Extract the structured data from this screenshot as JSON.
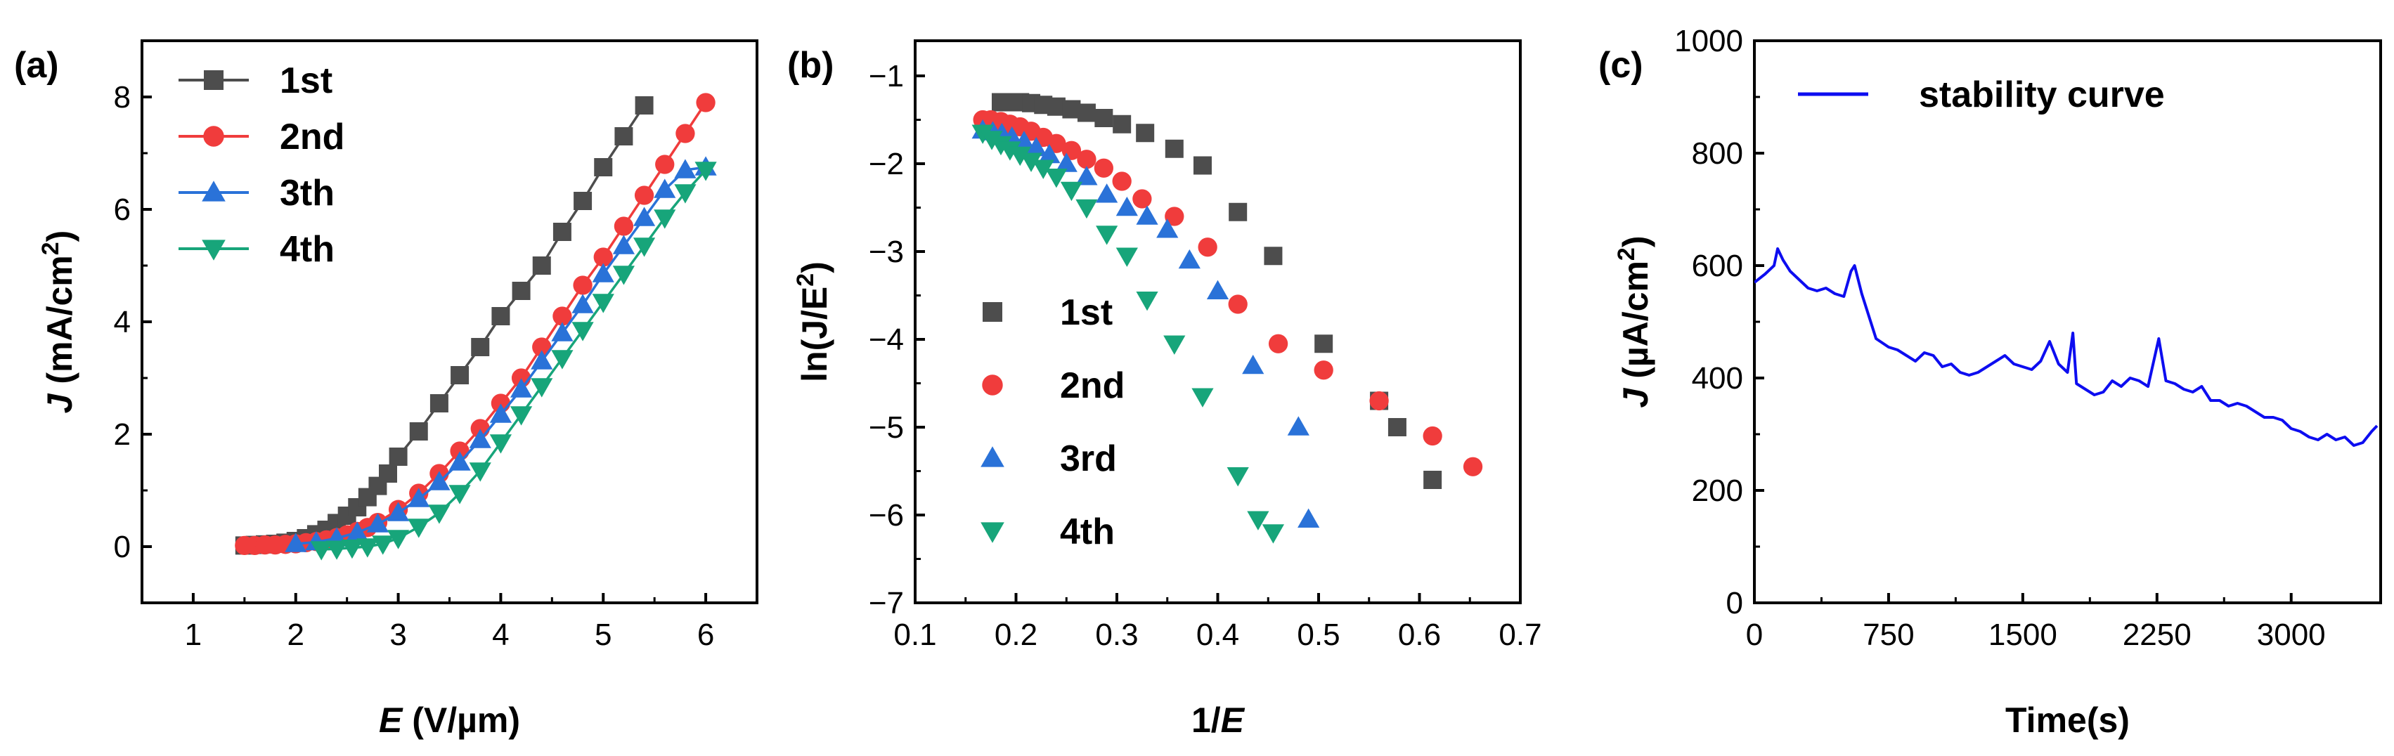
{
  "chart_data": [
    {
      "panel_label": "(a)",
      "type": "line",
      "xlabel_italic": "E",
      "xlabel_rest": " (V/µm)",
      "ylabel_italic": "J",
      "ylabel_rest": " (mA/cm",
      "ylabel_sup": "2",
      "ylabel_close": ")",
      "xlim": [
        0.5,
        6.5
      ],
      "ylim": [
        -1,
        9
      ],
      "xticks": [
        1,
        2,
        3,
        4,
        5,
        6
      ],
      "yticks": [
        0,
        2,
        4,
        6,
        8
      ],
      "legend_position": "top-left",
      "series": [
        {
          "name": "1st",
          "color": "#4d4d4d",
          "marker": "square",
          "x": [
            1.5,
            1.6,
            1.7,
            1.8,
            1.9,
            2.0,
            2.1,
            2.2,
            2.3,
            2.4,
            2.5,
            2.6,
            2.7,
            2.8,
            2.9,
            3.0,
            3.2,
            3.4,
            3.6,
            3.8,
            4.0,
            4.2,
            4.4,
            4.6,
            4.8,
            5.0,
            5.2,
            5.4
          ],
          "y": [
            0.02,
            0.03,
            0.04,
            0.05,
            0.07,
            0.1,
            0.15,
            0.22,
            0.3,
            0.42,
            0.55,
            0.7,
            0.88,
            1.08,
            1.3,
            1.6,
            2.05,
            2.55,
            3.05,
            3.55,
            4.1,
            4.55,
            5.0,
            5.6,
            6.15,
            6.75,
            7.3,
            7.85
          ]
        },
        {
          "name": "2nd",
          "color": "#f03c3c",
          "marker": "circle",
          "x": [
            1.5,
            1.6,
            1.7,
            1.8,
            1.9,
            2.0,
            2.1,
            2.2,
            2.3,
            2.4,
            2.5,
            2.6,
            2.7,
            2.8,
            3.0,
            3.2,
            3.4,
            3.6,
            3.8,
            4.0,
            4.2,
            4.4,
            4.6,
            4.8,
            5.0,
            5.2,
            5.4,
            5.6,
            5.8,
            6.0
          ],
          "y": [
            0.02,
            0.02,
            0.03,
            0.03,
            0.04,
            0.05,
            0.07,
            0.09,
            0.12,
            0.16,
            0.21,
            0.27,
            0.34,
            0.43,
            0.66,
            0.95,
            1.3,
            1.7,
            2.1,
            2.55,
            3.0,
            3.55,
            4.1,
            4.65,
            5.15,
            5.7,
            6.25,
            6.8,
            7.35,
            7.9
          ]
        },
        {
          "name": "3th",
          "color": "#2a72d8",
          "marker": "triangle-up",
          "x": [
            2.0,
            2.2,
            2.4,
            2.6,
            2.8,
            3.0,
            3.2,
            3.4,
            3.6,
            3.8,
            4.0,
            4.2,
            4.4,
            4.6,
            4.8,
            5.0,
            5.2,
            5.4,
            5.6,
            5.8,
            6.0
          ],
          "y": [
            0.05,
            0.08,
            0.15,
            0.25,
            0.4,
            0.6,
            0.85,
            1.15,
            1.5,
            1.9,
            2.35,
            2.8,
            3.3,
            3.8,
            4.3,
            4.85,
            5.35,
            5.85,
            6.35,
            6.7,
            6.75
          ]
        },
        {
          "name": "4th",
          "color": "#17a57a",
          "marker": "triangle-down",
          "x": [
            2.25,
            2.4,
            2.55,
            2.7,
            2.85,
            3.0,
            3.2,
            3.4,
            3.6,
            3.8,
            4.0,
            4.2,
            4.4,
            4.6,
            4.8,
            5.0,
            5.2,
            5.4,
            5.6,
            5.8,
            6.0
          ],
          "y": [
            -0.05,
            -0.04,
            -0.02,
            0.0,
            0.05,
            0.15,
            0.35,
            0.6,
            0.95,
            1.35,
            1.85,
            2.35,
            2.85,
            3.35,
            3.85,
            4.35,
            4.85,
            5.35,
            5.85,
            6.3,
            6.7
          ]
        }
      ]
    },
    {
      "panel_label": "(b)",
      "type": "scatter",
      "xlabel_prefix": "1/",
      "xlabel_italic": "E",
      "ylabel_prefix": "ln(J/E",
      "ylabel_sup": "2",
      "ylabel_close": ")",
      "xlim": [
        0.1,
        0.7
      ],
      "ylim": [
        -7,
        -0.6
      ],
      "xticks": [
        0.1,
        0.2,
        0.3,
        0.4,
        0.5,
        0.6,
        0.7
      ],
      "xtick_labels": [
        "0.1",
        "0.2",
        "0.3",
        "0.4",
        "0.5",
        "0.6",
        "0.7"
      ],
      "yticks": [
        -7,
        -6,
        -5,
        -4,
        -3,
        -2,
        -1
      ],
      "ytick_labels": [
        "−7",
        "−6",
        "−5",
        "−4",
        "−3",
        "−2",
        "−1"
      ],
      "legend_position": "bottom-left",
      "series": [
        {
          "name": "1st",
          "color": "#4d4d4d",
          "marker": "square",
          "x": [
            0.185,
            0.194,
            0.204,
            0.215,
            0.227,
            0.24,
            0.255,
            0.27,
            0.287,
            0.305,
            0.328,
            0.357,
            0.385,
            0.42,
            0.455,
            0.505,
            0.56,
            0.578,
            0.613
          ],
          "y": [
            -1.3,
            -1.3,
            -1.3,
            -1.31,
            -1.33,
            -1.35,
            -1.38,
            -1.42,
            -1.48,
            -1.55,
            -1.65,
            -1.83,
            -2.02,
            -2.55,
            -3.05,
            -4.05,
            -4.7,
            -5.0,
            -5.6
          ]
        },
        {
          "name": "2nd",
          "color": "#f03c3c",
          "marker": "circle",
          "x": [
            0.167,
            0.175,
            0.185,
            0.194,
            0.204,
            0.215,
            0.227,
            0.24,
            0.255,
            0.27,
            0.287,
            0.305,
            0.325,
            0.357,
            0.39,
            0.42,
            0.46,
            0.505,
            0.56,
            0.613,
            0.653
          ],
          "y": [
            -1.5,
            -1.5,
            -1.52,
            -1.55,
            -1.58,
            -1.63,
            -1.7,
            -1.77,
            -1.85,
            -1.95,
            -2.05,
            -2.2,
            -2.4,
            -2.6,
            -2.95,
            -3.6,
            -4.05,
            -4.35,
            -4.7,
            -5.1,
            -5.45
          ]
        },
        {
          "name": "3rd",
          "color": "#2a72d8",
          "marker": "triangle-up",
          "x": [
            0.167,
            0.177,
            0.186,
            0.196,
            0.208,
            0.22,
            0.233,
            0.25,
            0.27,
            0.29,
            0.31,
            0.33,
            0.35,
            0.372,
            0.4,
            0.435,
            0.48,
            0.49
          ],
          "y": [
            -1.62,
            -1.64,
            -1.66,
            -1.7,
            -1.75,
            -1.82,
            -1.9,
            -2.0,
            -2.15,
            -2.35,
            -2.5,
            -2.6,
            -2.75,
            -3.1,
            -3.45,
            -4.3,
            -5.0,
            -6.05
          ]
        },
        {
          "name": "4th",
          "color": "#17a57a",
          "marker": "triangle-down",
          "x": [
            0.167,
            0.176,
            0.185,
            0.194,
            0.204,
            0.215,
            0.227,
            0.24,
            0.255,
            0.27,
            0.29,
            0.31,
            0.33,
            0.357,
            0.385,
            0.42,
            0.44,
            0.455
          ],
          "y": [
            -1.65,
            -1.72,
            -1.78,
            -1.84,
            -1.9,
            -1.97,
            -2.05,
            -2.15,
            -2.3,
            -2.5,
            -2.8,
            -3.05,
            -3.55,
            -4.05,
            -4.65,
            -5.55,
            -6.05,
            -6.2
          ]
        }
      ]
    },
    {
      "panel_label": "(c)",
      "type": "line",
      "xlabel": "Time(s)",
      "ylabel_italic": "J",
      "ylabel_rest": " (µA/cm",
      "ylabel_sup": "2",
      "ylabel_close": ")",
      "xlim": [
        0,
        3500
      ],
      "ylim": [
        0,
        1000
      ],
      "xticks": [
        0,
        750,
        1500,
        2250,
        3000
      ],
      "yticks": [
        0,
        200,
        400,
        600,
        800,
        1000
      ],
      "legend_position": "top-left",
      "series": [
        {
          "name": "stability curve",
          "color": "#0d0df0",
          "x": [
            0,
            60,
            110,
            130,
            160,
            200,
            250,
            300,
            350,
            400,
            450,
            500,
            540,
            560,
            600,
            640,
            680,
            750,
            800,
            850,
            900,
            950,
            1000,
            1050,
            1100,
            1150,
            1200,
            1250,
            1300,
            1350,
            1400,
            1450,
            1500,
            1550,
            1600,
            1650,
            1700,
            1750,
            1780,
            1800,
            1850,
            1900,
            1950,
            2000,
            2050,
            2100,
            2150,
            2200,
            2260,
            2300,
            2350,
            2400,
            2450,
            2500,
            2550,
            2600,
            2650,
            2700,
            2750,
            2800,
            2850,
            2900,
            2950,
            3000,
            3050,
            3100,
            3150,
            3200,
            3250,
            3300,
            3350,
            3400,
            3450,
            3480
          ],
          "y": [
            570,
            585,
            600,
            630,
            610,
            590,
            575,
            560,
            555,
            560,
            550,
            545,
            590,
            600,
            550,
            510,
            470,
            455,
            450,
            440,
            430,
            445,
            440,
            420,
            425,
            410,
            405,
            410,
            420,
            430,
            440,
            425,
            420,
            415,
            430,
            465,
            425,
            410,
            480,
            390,
            380,
            370,
            375,
            395,
            385,
            400,
            395,
            385,
            470,
            395,
            390,
            380,
            375,
            385,
            360,
            360,
            350,
            355,
            350,
            340,
            330,
            330,
            325,
            310,
            305,
            295,
            290,
            300,
            290,
            295,
            280,
            285,
            305,
            315
          ]
        }
      ]
    }
  ]
}
